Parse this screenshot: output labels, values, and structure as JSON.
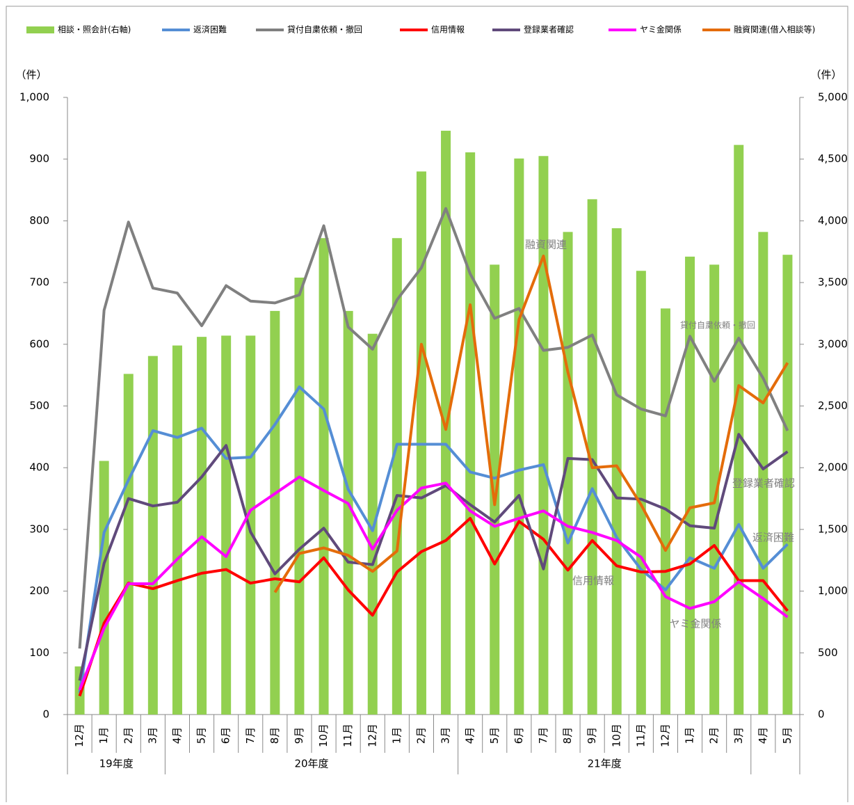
{
  "chart_data": {
    "type": "bar_line",
    "y_unit": "（件）",
    "y2_unit": "（件）",
    "categories": [
      "12月",
      "1月",
      "2月",
      "3月",
      "4月",
      "5月",
      "6月",
      "7月",
      "8月",
      "9月",
      "10月",
      "11月",
      "12月",
      "1月",
      "2月",
      "3月",
      "4月",
      "5月",
      "6月",
      "7月",
      "8月",
      "9月",
      "10月",
      "11月",
      "12月",
      "1月",
      "2月",
      "3月",
      "4月",
      "5月"
    ],
    "fiscal_years": [
      "19年度",
      "19年度",
      "19年度",
      "19年度",
      "20年度",
      "20年度",
      "20年度",
      "20年度",
      "20年度",
      "20年度",
      "20年度",
      "20年度",
      "20年度",
      "20年度",
      "20年度",
      "20年度",
      "21年度",
      "21年度",
      "21年度",
      "21年度",
      "21年度",
      "21年度",
      "21年度",
      "21年度",
      "21年度",
      "21年度",
      "21年度",
      "21年度",
      null,
      null
    ],
    "ylim": [
      0,
      1000
    ],
    "yticks": [
      0,
      100,
      200,
      300,
      400,
      500,
      600,
      700,
      800,
      900,
      {
        "value": 1000,
        "label": "1,000"
      }
    ],
    "y2lim": [
      0,
      5000
    ],
    "y2ticks": [
      0,
      500,
      {
        "value": 1000,
        "label": "1,000"
      },
      {
        "value": 1500,
        "label": "1,500"
      },
      {
        "value": 2000,
        "label": "2,000"
      },
      {
        "value": 2500,
        "label": "2,500"
      },
      {
        "value": 3000,
        "label": "3,000"
      },
      {
        "value": 3500,
        "label": "3,500"
      },
      {
        "value": 4000,
        "label": "4,000"
      },
      {
        "value": 4500,
        "label": "4,500"
      },
      {
        "value": 5000,
        "label": "5,000"
      }
    ],
    "grid": false,
    "series": [
      {
        "name": "相談・照会計(右軸)",
        "type": "bar",
        "axis": "y2",
        "color": "#92d050",
        "values": [
          390,
          2055,
          2760,
          2905,
          2990,
          3060,
          3070,
          3070,
          3270,
          3540,
          3860,
          3270,
          3085,
          3860,
          4400,
          4730,
          4555,
          3645,
          4505,
          4525,
          3910,
          4175,
          3940,
          3595,
          3290,
          3710,
          3645,
          4615,
          3910,
          3725
        ]
      },
      {
        "name": "返済困難",
        "type": "line",
        "color": "#558ed5",
        "values": [
          35,
          295,
          380,
          460,
          449,
          464,
          415,
          417,
          470,
          531,
          495,
          365,
          298,
          438,
          438,
          438,
          393,
          383,
          396,
          405,
          278,
          366,
          287,
          235,
          202,
          254,
          237,
          308,
          237,
          276
        ]
      },
      {
        "name": "貸付自粛依頼・撤回",
        "type": "line",
        "color": "#808080",
        "values": [
          107,
          655,
          798,
          691,
          683,
          630,
          695,
          670,
          667,
          680,
          792,
          628,
          592,
          672,
          724,
          820,
          714,
          642,
          658,
          590,
          595,
          615,
          518,
          495,
          484,
          613,
          540,
          610,
          545,
          460
        ]
      },
      {
        "name": "信用情報",
        "type": "line",
        "color": "#ff0000",
        "values": [
          30,
          148,
          213,
          204,
          217,
          229,
          235,
          213,
          220,
          215,
          254,
          202,
          161,
          231,
          264,
          282,
          318,
          244,
          313,
          284,
          234,
          282,
          241,
          231,
          232,
          244,
          274,
          217,
          217,
          168
        ]
      },
      {
        "name": "登録業者確認",
        "type": "line",
        "color": "#604a7b",
        "values": [
          55,
          245,
          350,
          338,
          344,
          385,
          436,
          296,
          228,
          268,
          302,
          247,
          243,
          355,
          351,
          371,
          340,
          312,
          355,
          236,
          415,
          413,
          351,
          349,
          333,
          306,
          302,
          454,
          398,
          426
        ]
      },
      {
        "name": "ヤミ金関係",
        "type": "line",
        "color": "#ff00ff",
        "values": [
          40,
          140,
          212,
          212,
          252,
          288,
          256,
          331,
          358,
          385,
          363,
          342,
          268,
          331,
          367,
          375,
          330,
          305,
          318,
          330,
          305,
          295,
          282,
          255,
          191,
          172,
          183,
          215,
          188,
          158
        ]
      },
      {
        "name": "融資関連(借入相談等)",
        "type": "line",
        "color": "#e46c0a",
        "values": [
          null,
          null,
          null,
          null,
          null,
          null,
          null,
          null,
          198,
          261,
          270,
          258,
          232,
          265,
          600,
          462,
          664,
          340,
          640,
          743,
          555,
          400,
          403,
          340,
          266,
          335,
          343,
          533,
          505,
          570
        ]
      }
    ],
    "annotations": [
      "融資関連",
      "貸付自粛依頼・撤回",
      "登録業者確認",
      "返済困難",
      "信用情報",
      "ヤミ金関係"
    ]
  }
}
